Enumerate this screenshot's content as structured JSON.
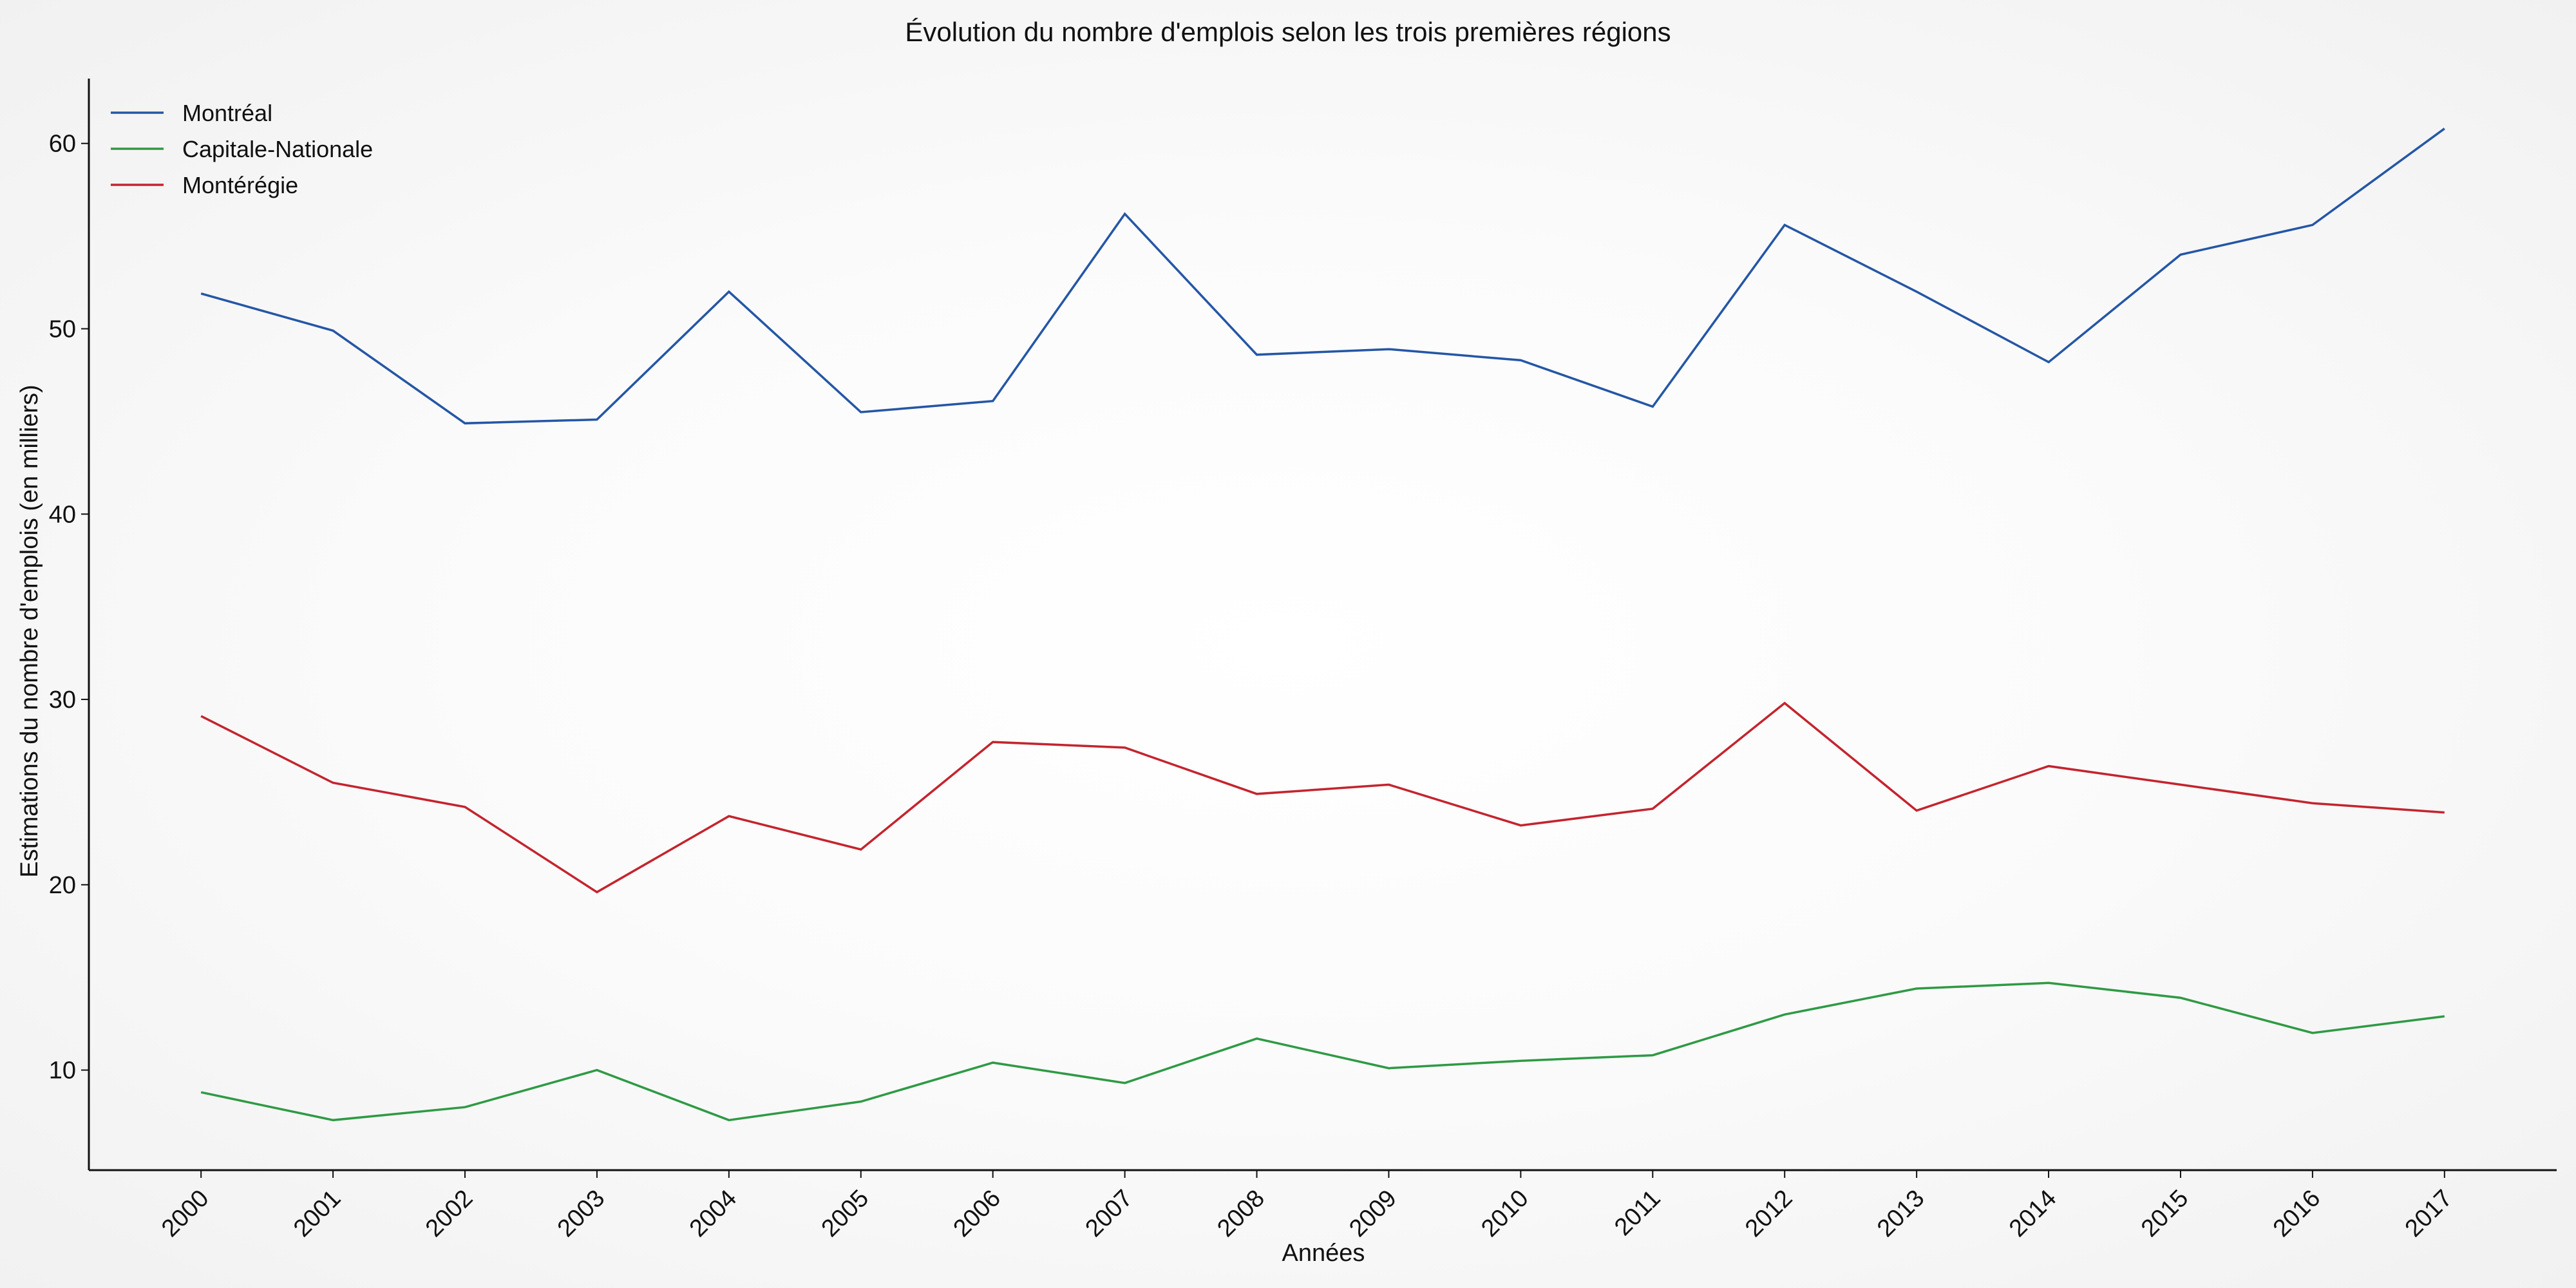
{
  "chart_data": {
    "type": "line",
    "title": "Évolution du nombre d'emplois selon les trois premières régions",
    "xlabel": "Années",
    "ylabel": "Estimations du nombre d'emplois (en milliers)",
    "x": [
      2000,
      2001,
      2002,
      2003,
      2004,
      2005,
      2006,
      2007,
      2008,
      2009,
      2010,
      2011,
      2012,
      2013,
      2014,
      2015,
      2016,
      2017
    ],
    "x_tick_labels": [
      "2000",
      "2001",
      "2002",
      "2003",
      "2004",
      "2005",
      "2006",
      "2007",
      "2008",
      "2009",
      "2010",
      "2011",
      "2012",
      "2013",
      "2014",
      "2015",
      "2016",
      "2017"
    ],
    "y_ticks": [
      10,
      20,
      30,
      40,
      50,
      60
    ],
    "y_tick_labels": [
      "10",
      "20",
      "30",
      "40",
      "50",
      "60"
    ],
    "xlim": [
      1999.15,
      2017.85
    ],
    "ylim": [
      4.6,
      63.5
    ],
    "grid": false,
    "legend_position": "top-left",
    "series": [
      {
        "name": "Montréal",
        "color": "#2456a6",
        "values": [
          51.9,
          49.9,
          44.9,
          45.1,
          52.0,
          45.5,
          46.1,
          56.2,
          48.6,
          48.9,
          48.3,
          45.8,
          55.6,
          52.0,
          48.2,
          54.0,
          55.6,
          60.8
        ]
      },
      {
        "name": "Capitale-Nationale",
        "color": "#2e9a44",
        "values": [
          8.8,
          7.3,
          8.0,
          10.0,
          7.3,
          8.3,
          10.4,
          9.3,
          11.7,
          10.1,
          10.5,
          10.8,
          13.0,
          14.4,
          14.7,
          13.9,
          12.0,
          12.9
        ]
      },
      {
        "name": "Montérégie",
        "color": "#c4242e",
        "values": [
          29.1,
          25.5,
          24.2,
          19.6,
          23.7,
          21.9,
          27.7,
          27.4,
          24.9,
          25.4,
          23.2,
          24.1,
          29.8,
          24.0,
          26.4,
          25.4,
          24.4,
          23.9
        ]
      }
    ]
  }
}
